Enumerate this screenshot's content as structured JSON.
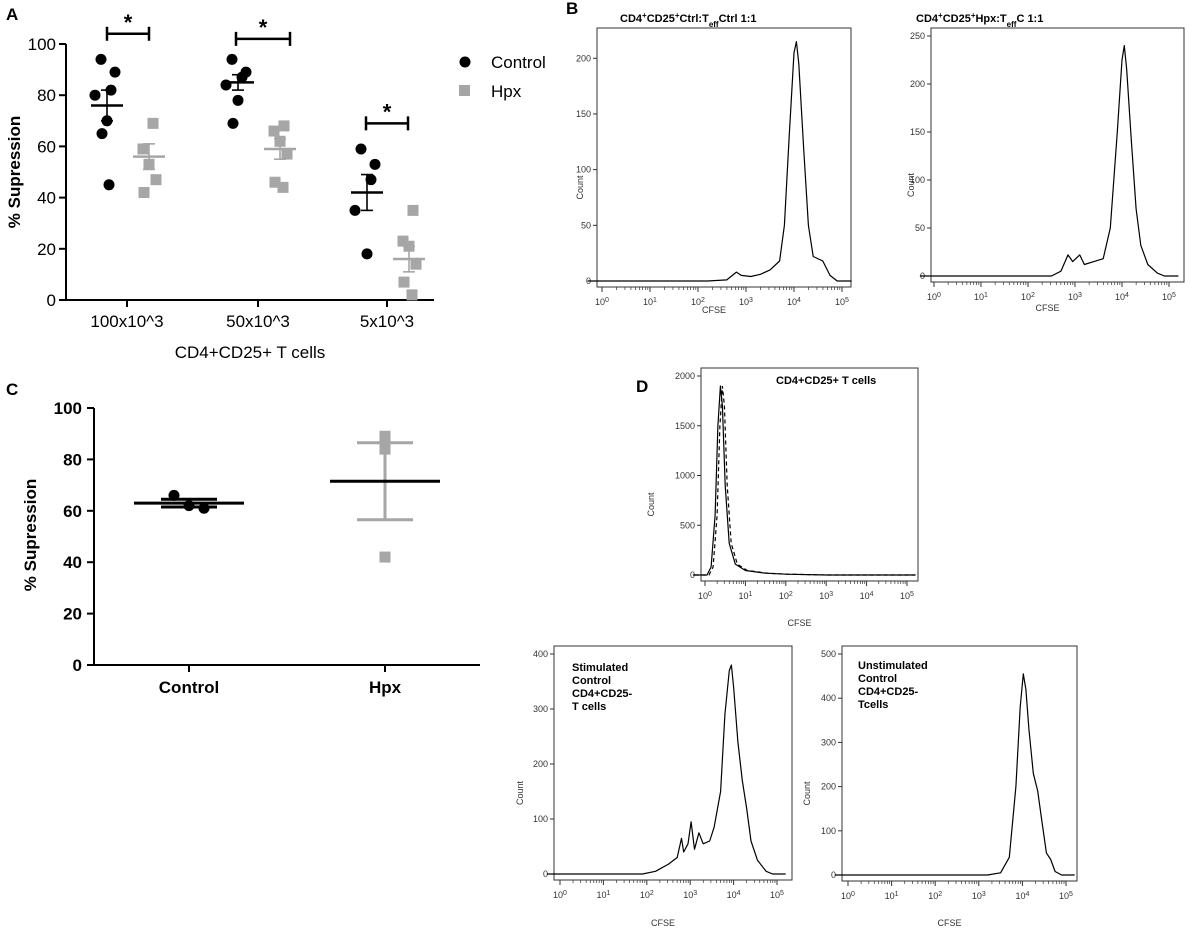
{
  "panels": {
    "a": "A",
    "b": "B",
    "c": "C",
    "d": "D"
  },
  "colors": {
    "control": "#000000",
    "hpx": "#a6a6a6"
  },
  "chart_data": [
    {
      "id": "A",
      "type": "scatter",
      "title": "",
      "xlabel": "CD4+CD25+ T cells",
      "ylabel": "% Supression",
      "ylim": [
        0,
        100
      ],
      "yticks": [
        0,
        20,
        40,
        60,
        80,
        100
      ],
      "categories": [
        "100x10^3",
        "50x10^3",
        "5x10^3"
      ],
      "legend": [
        "Control",
        "Hpx"
      ],
      "significance": [
        "*",
        "*",
        "*"
      ],
      "series": [
        {
          "name": "Control",
          "mean": [
            76,
            85,
            42
          ],
          "sem": [
            6,
            3,
            7
          ],
          "points": [
            [
              94,
              89,
              82,
              80,
              70,
              65,
              45
            ],
            [
              94,
              89,
              87,
              84,
              78,
              69
            ],
            [
              59,
              53,
              47,
              35,
              18
            ]
          ]
        },
        {
          "name": "Hpx",
          "mean": [
            56,
            59,
            16
          ],
          "sem": [
            5,
            4,
            5
          ],
          "points": [
            [
              69,
              59,
              53,
              47,
              42
            ],
            [
              68,
              66,
              62,
              57,
              46,
              44
            ],
            [
              35,
              23,
              21,
              14,
              7,
              2
            ]
          ]
        }
      ]
    },
    {
      "id": "B1",
      "type": "histogram",
      "title": "CD4+CD25+Ctrl:TeffCtrl 1:1",
      "title_parts": {
        "a": "CD4",
        "b": "+",
        "c": "CD25",
        "d": "+",
        "e": "Ctrl:T",
        "f": "eff",
        "g": "Ctrl 1:1"
      },
      "xlabel": "CFSE",
      "ylabel": "Count",
      "xscale": "log",
      "xticks": [
        "0",
        "1",
        "2",
        "3",
        "4",
        "5"
      ],
      "ylim": [
        0,
        220
      ],
      "yticks": [
        0,
        50,
        100,
        150,
        200
      ],
      "curve_log": [
        [
          -0.3,
          0
        ],
        [
          2.2,
          0
        ],
        [
          2.6,
          1
        ],
        [
          2.8,
          8
        ],
        [
          2.9,
          5
        ],
        [
          3.1,
          4
        ],
        [
          3.3,
          6
        ],
        [
          3.5,
          10
        ],
        [
          3.7,
          18
        ],
        [
          3.8,
          50
        ],
        [
          3.9,
          130
        ],
        [
          4.0,
          205
        ],
        [
          4.05,
          215
        ],
        [
          4.1,
          195
        ],
        [
          4.2,
          120
        ],
        [
          4.3,
          50
        ],
        [
          4.4,
          22
        ],
        [
          4.6,
          18
        ],
        [
          4.75,
          5
        ],
        [
          4.9,
          0
        ],
        [
          5.2,
          0
        ]
      ]
    },
    {
      "id": "B2",
      "type": "histogram",
      "title": "CD4+CD25+Hpx:TeffC 1:1",
      "title_parts": {
        "a": "CD4",
        "b": "+",
        "c": "CD25",
        "d": "+",
        "e": "Hpx:T",
        "f": "eff",
        "g": "C 1:1"
      },
      "xlabel": "CFSE",
      "ylabel": "Count",
      "xscale": "log",
      "xticks": [
        "0",
        "1",
        "2",
        "3",
        "4",
        "5"
      ],
      "ylim": [
        0,
        250
      ],
      "yticks": [
        0,
        50,
        100,
        150,
        200,
        250
      ],
      "curve_log": [
        [
          -0.3,
          0
        ],
        [
          2.5,
          0
        ],
        [
          2.7,
          5
        ],
        [
          2.85,
          22
        ],
        [
          2.95,
          15
        ],
        [
          3.1,
          22
        ],
        [
          3.2,
          12
        ],
        [
          3.4,
          15
        ],
        [
          3.6,
          18
        ],
        [
          3.75,
          50
        ],
        [
          3.9,
          150
        ],
        [
          4.0,
          225
        ],
        [
          4.05,
          240
        ],
        [
          4.1,
          215
        ],
        [
          4.2,
          140
        ],
        [
          4.3,
          70
        ],
        [
          4.4,
          32
        ],
        [
          4.55,
          12
        ],
        [
          4.75,
          3
        ],
        [
          4.9,
          0
        ],
        [
          5.2,
          0
        ]
      ]
    },
    {
      "id": "C",
      "type": "scatter",
      "title": "",
      "xlabel": "",
      "ylabel": "% Supression",
      "ylim": [
        0,
        100
      ],
      "yticks": [
        0,
        20,
        40,
        60,
        80,
        100
      ],
      "categories": [
        "Control",
        "Hpx"
      ],
      "series": [
        {
          "name": "Control",
          "mean": 63,
          "sem": 1.5,
          "points": [
            66,
            62,
            61
          ]
        },
        {
          "name": "Hpx",
          "mean": 71.5,
          "sem": 15,
          "points": [
            89,
            84,
            42
          ]
        }
      ]
    },
    {
      "id": "D1",
      "type": "histogram",
      "title": "CD4+CD25+ T cells",
      "xlabel": "CFSE",
      "ylabel": "Count",
      "xscale": "log",
      "xticks": [
        "0",
        "1",
        "2",
        "3",
        "4",
        "5"
      ],
      "ylim": [
        0,
        2000
      ],
      "yticks": [
        0,
        500,
        1000,
        1500,
        2000
      ],
      "curve_log": [
        [
          -0.3,
          0
        ],
        [
          0.05,
          0
        ],
        [
          0.15,
          80
        ],
        [
          0.25,
          600
        ],
        [
          0.32,
          1500
        ],
        [
          0.38,
          1900
        ],
        [
          0.43,
          1700
        ],
        [
          0.5,
          900
        ],
        [
          0.6,
          320
        ],
        [
          0.75,
          110
        ],
        [
          1.0,
          45
        ],
        [
          1.5,
          18
        ],
        [
          2.0,
          8
        ],
        [
          3.0,
          0
        ],
        [
          5.2,
          0
        ]
      ]
    },
    {
      "id": "D2",
      "type": "histogram",
      "title": "Stimulated Control CD4+CD25- T cells",
      "title_lines": [
        "Stimulated",
        "Control",
        "CD4+CD25-",
        "T cells"
      ],
      "xlabel": "CFSE",
      "ylabel": "Count",
      "xscale": "log",
      "xticks": [
        "0",
        "1",
        "2",
        "3",
        "4",
        "5"
      ],
      "ylim": [
        0,
        400
      ],
      "yticks": [
        0,
        100,
        200,
        300,
        400
      ],
      "curve_log": [
        [
          -0.3,
          0
        ],
        [
          1.9,
          0
        ],
        [
          2.2,
          5
        ],
        [
          2.5,
          18
        ],
        [
          2.7,
          30
        ],
        [
          2.8,
          65
        ],
        [
          2.85,
          40
        ],
        [
          2.95,
          55
        ],
        [
          3.02,
          95
        ],
        [
          3.1,
          45
        ],
        [
          3.2,
          75
        ],
        [
          3.3,
          55
        ],
        [
          3.45,
          60
        ],
        [
          3.55,
          85
        ],
        [
          3.7,
          150
        ],
        [
          3.8,
          290
        ],
        [
          3.9,
          370
        ],
        [
          3.95,
          380
        ],
        [
          4.0,
          340
        ],
        [
          4.1,
          240
        ],
        [
          4.2,
          170
        ],
        [
          4.3,
          120
        ],
        [
          4.4,
          60
        ],
        [
          4.55,
          25
        ],
        [
          4.75,
          5
        ],
        [
          4.9,
          0
        ],
        [
          5.2,
          0
        ]
      ]
    },
    {
      "id": "D3",
      "type": "histogram",
      "title": "Unstimulated Control CD4+CD25- Tcells",
      "title_lines": [
        "Unstimulated",
        "Control",
        "CD4+CD25-",
        "Tcells"
      ],
      "xlabel": "CFSE",
      "ylabel": "Count",
      "xscale": "log",
      "xticks": [
        "0",
        "1",
        "2",
        "3",
        "4",
        "5"
      ],
      "ylim": [
        0,
        500
      ],
      "yticks": [
        0,
        100,
        200,
        300,
        400,
        500
      ],
      "curve_log": [
        [
          -0.3,
          0
        ],
        [
          3.2,
          0
        ],
        [
          3.5,
          5
        ],
        [
          3.7,
          40
        ],
        [
          3.85,
          200
        ],
        [
          3.95,
          380
        ],
        [
          4.02,
          455
        ],
        [
          4.08,
          420
        ],
        [
          4.15,
          330
        ],
        [
          4.25,
          230
        ],
        [
          4.35,
          190
        ],
        [
          4.45,
          120
        ],
        [
          4.55,
          50
        ],
        [
          4.65,
          35
        ],
        [
          4.75,
          8
        ],
        [
          4.9,
          0
        ],
        [
          5.2,
          0
        ]
      ]
    }
  ]
}
